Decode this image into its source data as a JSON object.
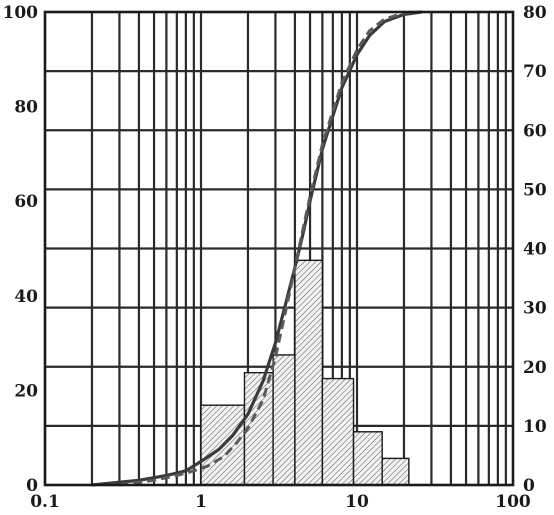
{
  "chart_data": {
    "type": "bar",
    "x_scale": "log",
    "xlim": [
      0.1,
      100
    ],
    "ylim_left": [
      0,
      100
    ],
    "ylim_right": [
      0,
      80
    ],
    "grid": true,
    "x_ticks": [
      "0.1",
      "1",
      "10",
      "100"
    ],
    "y_left_ticks": [
      "0",
      "20",
      "40",
      "60",
      "80",
      "100"
    ],
    "y_right_ticks": [
      "0",
      "10",
      "20",
      "30",
      "40",
      "50",
      "60",
      "70",
      "80"
    ],
    "histogram": {
      "axis": "right",
      "bins": [
        {
          "x0": 1.0,
          "x1": 1.9,
          "value": 13.5
        },
        {
          "x0": 1.9,
          "x1": 2.9,
          "value": 19
        },
        {
          "x0": 2.9,
          "x1": 4.0,
          "value": 22
        },
        {
          "x0": 4.0,
          "x1": 6.0,
          "value": 38
        },
        {
          "x0": 6.0,
          "x1": 9.5,
          "value": 18
        },
        {
          "x0": 9.5,
          "x1": 14.5,
          "value": 9
        },
        {
          "x0": 14.5,
          "x1": 21.5,
          "value": 4.5
        }
      ]
    },
    "series": [
      {
        "style": "solid",
        "axis": "left",
        "x": [
          0.2,
          0.4,
          0.6,
          0.8,
          1.0,
          1.3,
          1.6,
          2.0,
          2.5,
          3.0,
          3.5,
          4.0,
          4.5,
          5.0,
          6.0,
          7.0,
          8.0,
          10,
          12,
          15,
          20,
          26
        ],
        "y": [
          0,
          1,
          2,
          3,
          5,
          7.5,
          10.5,
          15,
          22,
          30,
          38.5,
          46,
          53,
          60,
          71,
          78,
          84,
          91,
          95,
          98,
          99.5,
          100
        ]
      },
      {
        "style": "dashed",
        "axis": "left",
        "x": [
          0.3,
          0.5,
          0.7,
          0.9,
          1.1,
          1.4,
          1.7,
          2.0,
          2.5,
          3.0,
          3.5,
          4.0,
          4.5,
          5.0,
          6.0,
          7.0,
          8.0,
          10,
          12,
          15,
          20,
          26
        ],
        "y": [
          0,
          1,
          2,
          3,
          4,
          6,
          9,
          12,
          18,
          27,
          37,
          46,
          54,
          61,
          72,
          79,
          85,
          92,
          96,
          98.5,
          99.8,
          100
        ]
      }
    ]
  }
}
